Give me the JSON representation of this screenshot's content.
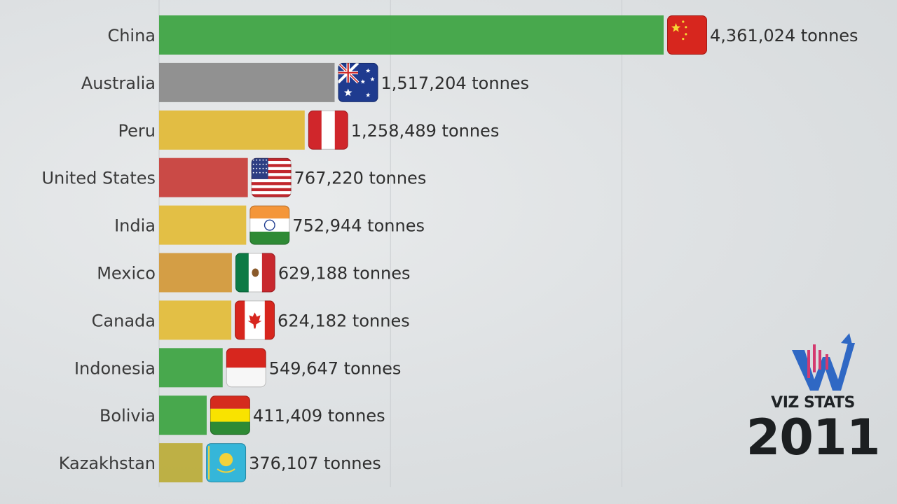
{
  "chart_data": {
    "type": "bar",
    "orientation": "horizontal",
    "categories": [
      "China",
      "Australia",
      "Peru",
      "United States",
      "India",
      "Mexico",
      "Canada",
      "Indonesia",
      "Bolivia",
      "Kazakhstan"
    ],
    "values": [
      4361024,
      1517204,
      1258489,
      767220,
      752944,
      629188,
      624182,
      549647,
      411409,
      376107
    ],
    "value_labels": [
      "4,361,024 tonnes",
      "1,517,204 tonnes",
      "1,258,489 tonnes",
      "767,220 tonnes",
      "752,944 tonnes",
      "629,188 tonnes",
      "624,182 tonnes",
      "549,647 tonnes",
      "411,409 tonnes",
      "376,107 tonnes"
    ],
    "unit": "tonnes",
    "bar_colors": [
      "#3fa444",
      "#8c8c8c",
      "#e1bb3a",
      "#c8413d",
      "#e3bd3c",
      "#d39a3c",
      "#e3bd3c",
      "#3fa444",
      "#3fa444",
      "#bcad3c"
    ],
    "flag_icons": [
      "china-flag-icon",
      "australia-flag-icon",
      "peru-flag-icon",
      "united-states-flag-icon",
      "india-flag-icon",
      "mexico-flag-icon",
      "canada-flag-icon",
      "indonesia-flag-icon",
      "bolivia-flag-icon",
      "kazakhstan-flag-icon"
    ],
    "xlim": [
      0,
      4361024
    ],
    "grid": true,
    "gridline_values": [
      2000000,
      4000000
    ],
    "legend": "none"
  },
  "brand": {
    "name": "VIZ STATS",
    "logo_icon": "viz-stats-logo-icon",
    "colors": {
      "blue": "#2f68c4",
      "pink": "#d43a6f"
    }
  },
  "period": {
    "year": "2011"
  }
}
